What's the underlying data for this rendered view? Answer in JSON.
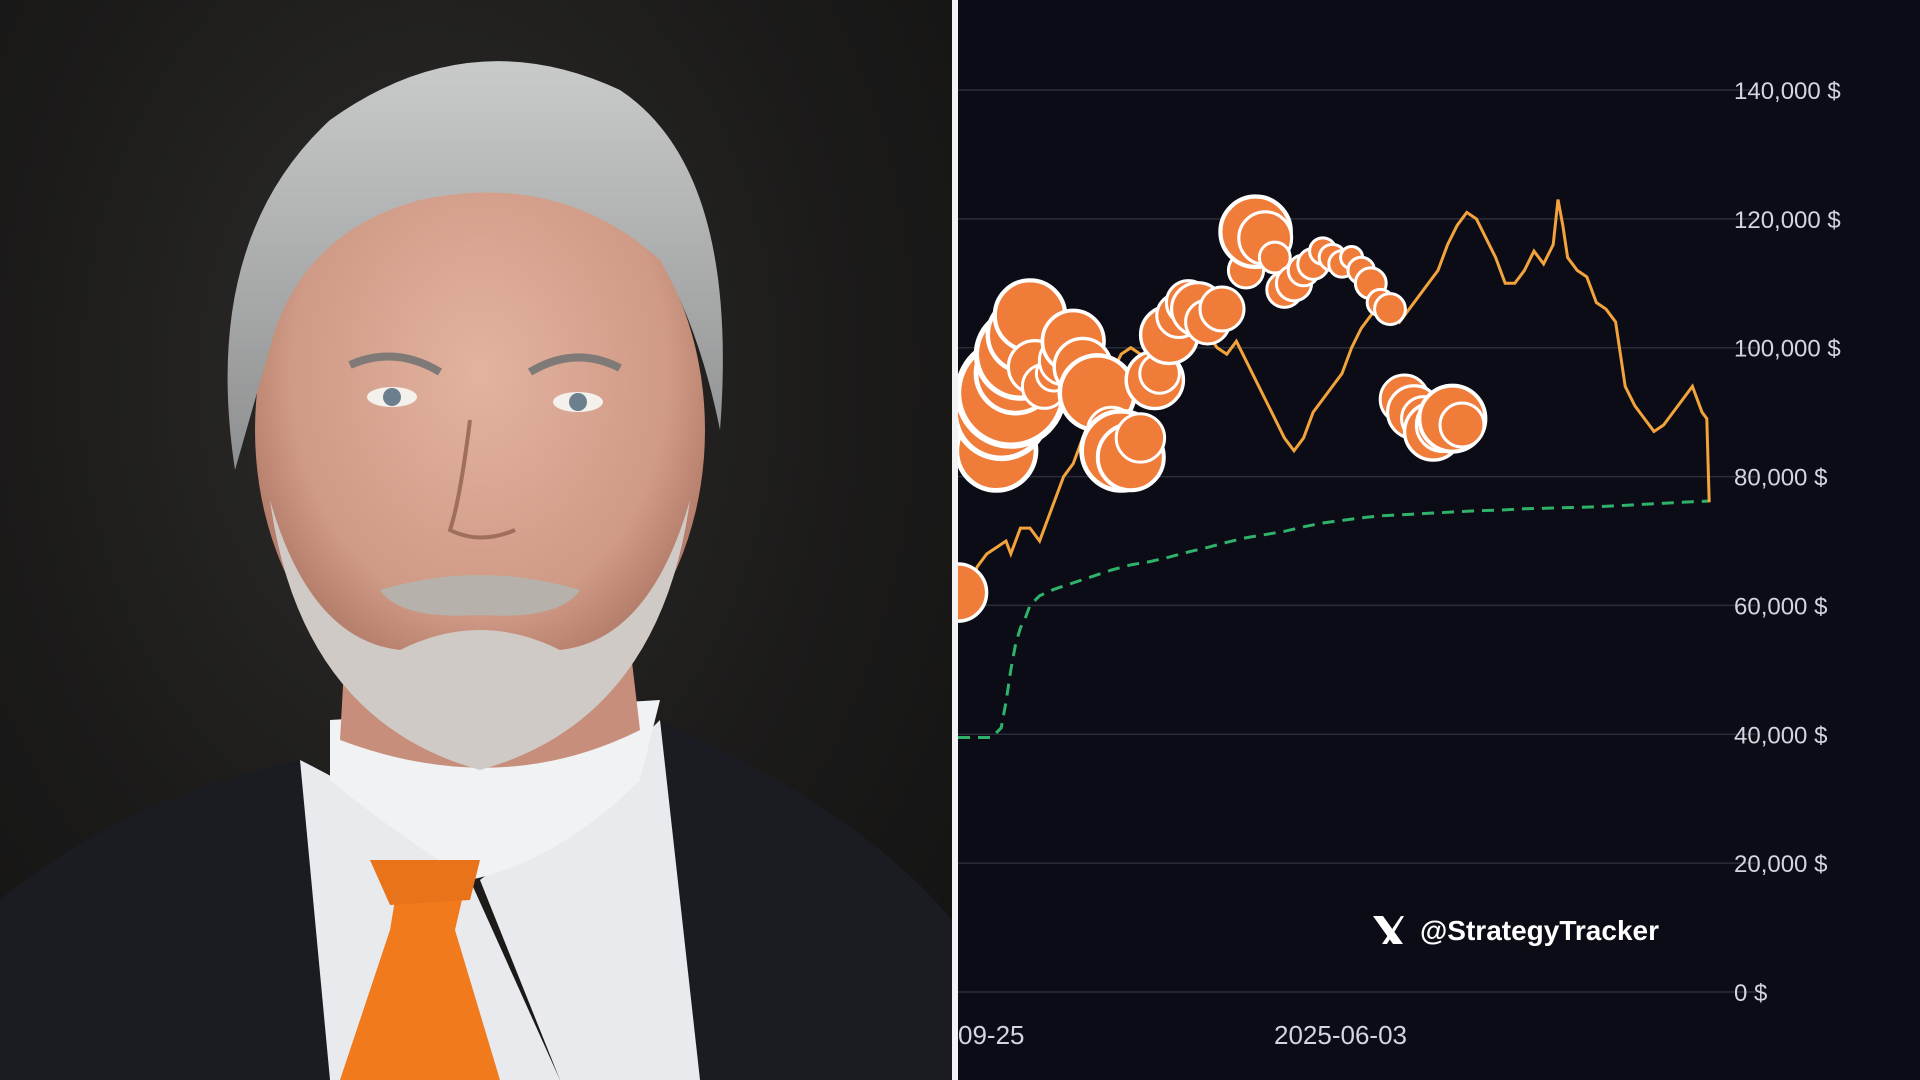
{
  "photo": {
    "subject": "portrait",
    "colors": {
      "background": "#1b1a19",
      "suit": "#1a1c22",
      "shirt": "#e8eaee",
      "tie": "#f07a1c",
      "hair": "#b7b8b8",
      "skin": "#d9a896"
    }
  },
  "watermark": {
    "icon": "x-logo-icon",
    "handle": "@StrategyTracker"
  },
  "colors": {
    "price_line": "#f2a33c",
    "bubble": "#f07c3a",
    "bubble_stroke": "#ffffff",
    "cost_line": "#2fb36b",
    "grid": "#2a2e3a"
  },
  "chart_data": {
    "type": "line",
    "grid": true,
    "y_axis_position": "right",
    "ylim": [
      0,
      140000
    ],
    "y_ticks": [
      0,
      20000,
      40000,
      60000,
      80000,
      100000,
      120000,
      140000
    ],
    "y_tick_labels": [
      "0 $",
      "20,000 $",
      "40,000 $",
      "60,000 $",
      "80,000 $",
      "100,000 $",
      "120,000 $",
      "140,000 $"
    ],
    "x_tick_labels": [
      "09-25",
      "2025-06-03"
    ],
    "series": [
      {
        "kind": "line",
        "values": [
          [
            0,
            60000
          ],
          [
            4,
            62000
          ],
          [
            8,
            66000
          ],
          [
            12,
            68000
          ],
          [
            16,
            69000
          ],
          [
            20,
            70000
          ],
          [
            22,
            68000
          ],
          [
            26,
            72000
          ],
          [
            30,
            72000
          ],
          [
            34,
            70000
          ],
          [
            38,
            74000
          ],
          [
            40,
            76000
          ],
          [
            44,
            80000
          ],
          [
            48,
            82000
          ],
          [
            52,
            86000
          ],
          [
            56,
            90000
          ],
          [
            60,
            93000
          ],
          [
            64,
            96000
          ],
          [
            68,
            99000
          ],
          [
            72,
            100000
          ],
          [
            76,
            99000
          ],
          [
            80,
            97000
          ],
          [
            84,
            98000
          ],
          [
            88,
            100000
          ],
          [
            92,
            102000
          ],
          [
            96,
            103000
          ],
          [
            100,
            104000
          ],
          [
            104,
            102000
          ],
          [
            108,
            100000
          ],
          [
            112,
            99000
          ],
          [
            116,
            101000
          ],
          [
            120,
            98000
          ],
          [
            124,
            95000
          ],
          [
            128,
            92000
          ],
          [
            132,
            89000
          ],
          [
            136,
            86000
          ],
          [
            140,
            84000
          ],
          [
            144,
            86000
          ],
          [
            148,
            90000
          ],
          [
            152,
            92000
          ],
          [
            156,
            94000
          ],
          [
            160,
            96000
          ],
          [
            164,
            100000
          ],
          [
            168,
            103000
          ],
          [
            172,
            105000
          ],
          [
            176,
            107000
          ],
          [
            180,
            106000
          ],
          [
            184,
            104000
          ],
          [
            188,
            106000
          ],
          [
            192,
            108000
          ],
          [
            196,
            110000
          ],
          [
            200,
            112000
          ],
          [
            204,
            116000
          ],
          [
            208,
            119000
          ],
          [
            212,
            121000
          ],
          [
            216,
            120000
          ],
          [
            220,
            117000
          ],
          [
            224,
            114000
          ],
          [
            228,
            110000
          ],
          [
            232,
            110000
          ],
          [
            236,
            112000
          ],
          [
            240,
            115000
          ],
          [
            244,
            113000
          ],
          [
            248,
            116000
          ],
          [
            250,
            123000
          ],
          [
            252,
            119000
          ],
          [
            254,
            114000
          ],
          [
            258,
            112000
          ],
          [
            262,
            111000
          ],
          [
            266,
            107000
          ],
          [
            270,
            106000
          ],
          [
            274,
            104000
          ],
          [
            278,
            94000
          ],
          [
            282,
            91000
          ],
          [
            286,
            89000
          ],
          [
            290,
            87000
          ],
          [
            294,
            88000
          ],
          [
            298,
            90000
          ],
          [
            302,
            92000
          ],
          [
            306,
            94000
          ],
          [
            310,
            90000
          ],
          [
            312,
            89000
          ],
          [
            313,
            76000
          ]
        ]
      },
      {
        "kind": "dashed",
        "values": [
          [
            0,
            39500
          ],
          [
            14,
            39500
          ],
          [
            18,
            41000
          ],
          [
            20,
            45000
          ],
          [
            22,
            50000
          ],
          [
            24,
            54000
          ],
          [
            26,
            56500
          ],
          [
            28,
            58000
          ],
          [
            30,
            60000
          ],
          [
            34,
            61500
          ],
          [
            40,
            62500
          ],
          [
            48,
            63500
          ],
          [
            56,
            64500
          ],
          [
            64,
            65500
          ],
          [
            72,
            66300
          ],
          [
            80,
            66800
          ],
          [
            88,
            67500
          ],
          [
            96,
            68300
          ],
          [
            104,
            69000
          ],
          [
            112,
            69800
          ],
          [
            120,
            70500
          ],
          [
            128,
            71000
          ],
          [
            136,
            71500
          ],
          [
            144,
            72200
          ],
          [
            152,
            72800
          ],
          [
            160,
            73200
          ],
          [
            168,
            73600
          ],
          [
            176,
            73900
          ],
          [
            186,
            74100
          ],
          [
            196,
            74300
          ],
          [
            206,
            74500
          ],
          [
            216,
            74700
          ],
          [
            226,
            74800
          ],
          [
            236,
            75000
          ],
          [
            246,
            75100
          ],
          [
            256,
            75200
          ],
          [
            266,
            75300
          ],
          [
            276,
            75500
          ],
          [
            286,
            75700
          ],
          [
            296,
            75900
          ],
          [
            306,
            76100
          ],
          [
            313,
            76200
          ]
        ]
      },
      {
        "kind": "bubble",
        "values": [
          [
            0,
            62000,
            2.6
          ],
          [
            16,
            84000,
            3.6
          ],
          [
            18,
            90000,
            4.2
          ],
          [
            22,
            93000,
            4.8
          ],
          [
            24,
            96000,
            3.6
          ],
          [
            26,
            99000,
            4.0
          ],
          [
            28,
            102000,
            3.4
          ],
          [
            30,
            105000,
            3.2
          ],
          [
            32,
            97000,
            2.4
          ],
          [
            36,
            94000,
            2.0
          ],
          [
            40,
            96000,
            1.6
          ],
          [
            44,
            98000,
            2.2
          ],
          [
            48,
            101000,
            2.8
          ],
          [
            52,
            97000,
            2.6
          ],
          [
            58,
            93000,
            3.4
          ],
          [
            64,
            87000,
            2.2
          ],
          [
            68,
            84000,
            3.6
          ],
          [
            72,
            83000,
            3.0
          ],
          [
            76,
            86000,
            2.2
          ],
          [
            82,
            95000,
            2.6
          ],
          [
            84,
            96000,
            1.8
          ],
          [
            88,
            102000,
            2.6
          ],
          [
            92,
            105000,
            2.0
          ],
          [
            96,
            107000,
            2.0
          ],
          [
            100,
            106000,
            2.4
          ],
          [
            104,
            104000,
            2.0
          ],
          [
            110,
            106000,
            2.0
          ],
          [
            120,
            112000,
            1.6
          ],
          [
            124,
            118000,
            3.2
          ],
          [
            128,
            117000,
            2.4
          ],
          [
            132,
            114000,
            1.4
          ],
          [
            136,
            109000,
            1.6
          ],
          [
            140,
            110000,
            1.6
          ],
          [
            144,
            112000,
            1.4
          ],
          [
            148,
            113000,
            1.4
          ],
          [
            152,
            115000,
            1.2
          ],
          [
            156,
            114000,
            1.2
          ],
          [
            160,
            113000,
            1.2
          ],
          [
            164,
            114000,
            1.0
          ],
          [
            168,
            112000,
            1.2
          ],
          [
            172,
            110000,
            1.4
          ],
          [
            176,
            107000,
            1.2
          ],
          [
            180,
            106000,
            1.4
          ],
          [
            186,
            92000,
            2.2
          ],
          [
            190,
            90000,
            2.4
          ],
          [
            194,
            89000,
            2.0
          ],
          [
            198,
            87000,
            2.6
          ],
          [
            202,
            88000,
            2.4
          ],
          [
            206,
            89000,
            3.0
          ],
          [
            210,
            88000,
            2.0
          ]
        ]
      }
    ]
  }
}
